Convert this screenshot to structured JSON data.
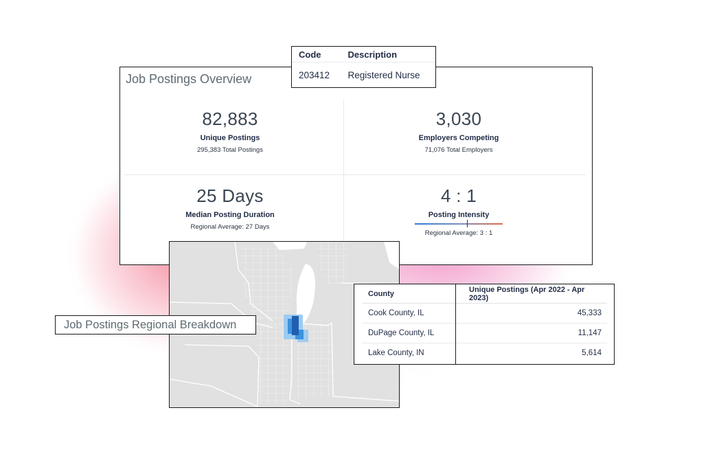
{
  "occupation": {
    "headers": {
      "code": "Code",
      "description": "Description"
    },
    "code": "203412",
    "description": "Registered Nurse"
  },
  "overview": {
    "title": "Job Postings Overview",
    "unique_postings": {
      "value": "82,883",
      "label": "Unique Postings",
      "sub": "295,383 Total Postings"
    },
    "employers": {
      "value": "3,030",
      "label": "Employers Competing",
      "sub": "71,076 Total Employers"
    },
    "duration": {
      "value": "25 Days",
      "label": "Median Posting Duration",
      "sub": "Regional Average: 27 Days"
    },
    "intensity": {
      "value": "4 : 1",
      "label": "Posting Intensity",
      "sub": "Regional Average: 3 : 1",
      "marker_fraction": 0.59
    }
  },
  "regional": {
    "title": "Job Postings Regional Breakdown",
    "table": {
      "headers": {
        "county": "County",
        "postings": "Unique Postings (Apr 2022 - Apr 2023)"
      },
      "rows": [
        {
          "county": "Cook County, IL",
          "postings": "45,333"
        },
        {
          "county": "DuPage County, IL",
          "postings": "11,147"
        },
        {
          "county": "Lake County, IN",
          "postings": "5,614"
        }
      ]
    }
  },
  "colors": {
    "map_land": "#e1e1e1",
    "map_water": "#ffffff",
    "map_border": "#ffffff",
    "heat_high": "#1f5fb0",
    "heat_mid": "#3d92dc",
    "heat_low": "#9ccbf2"
  }
}
